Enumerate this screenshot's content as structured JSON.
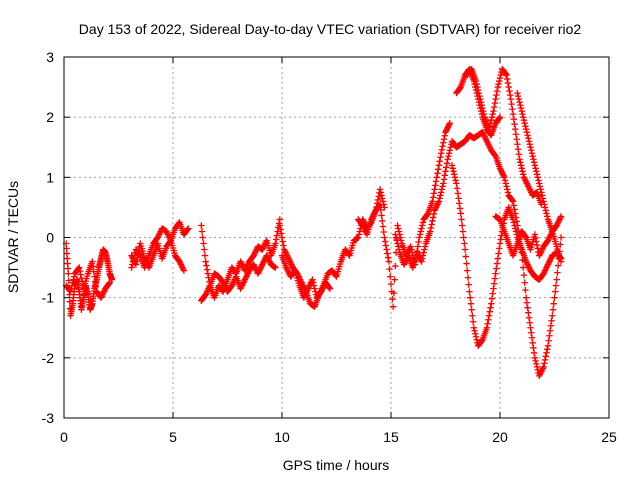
{
  "chart_data": {
    "type": "scatter",
    "title": "Day 153 of 2022, Sidereal Day-to-day VTEC variation (SDTVAR) for receiver rio2",
    "xlabel": "GPS time / hours",
    "ylabel": "SDTVAR / TECUs",
    "xlim": [
      0,
      25
    ],
    "ylim": [
      -3,
      3
    ],
    "xticks": [
      "0",
      "5",
      "10",
      "15",
      "20",
      "25"
    ],
    "xtick_values": [
      0,
      5,
      10,
      15,
      20,
      25
    ],
    "yticks": [
      "3",
      "2",
      "1",
      "0",
      "-1",
      "-2",
      "-3"
    ],
    "ytick_values": [
      3,
      2,
      1,
      0,
      -1,
      -2,
      -3
    ],
    "grid": true,
    "marker": "+",
    "color": "#ff0000",
    "series": [
      {
        "name": "SDTVAR",
        "segments": [
          {
            "x": [
              0.1,
              0.2,
              0.3,
              0.4,
              0.5,
              0.6,
              0.7,
              0.8,
              0.9,
              1.0,
              1.1,
              1.2,
              1.3,
              1.4,
              1.5,
              1.6,
              1.7,
              1.8,
              1.9,
              2.0,
              2.1,
              2.2
            ],
            "y": [
              -0.1,
              -0.6,
              -1.3,
              -1.1,
              -0.8,
              -0.7,
              -0.9,
              -1.2,
              -1.0,
              -0.8,
              -0.95,
              -1.2,
              -1.1,
              -0.85,
              -0.7,
              -0.5,
              -0.35,
              -0.2,
              -0.25,
              -0.4,
              -0.6,
              -0.7
            ]
          },
          {
            "x": [
              0.1,
              0.3,
              0.5,
              0.7,
              0.9,
              1.1,
              1.3,
              1.5,
              1.7,
              1.9,
              2.1
            ],
            "y": [
              -0.8,
              -0.9,
              -0.6,
              -0.5,
              -0.85,
              -0.6,
              -0.4,
              -0.9,
              -1.0,
              -0.85,
              -0.75
            ]
          },
          {
            "x": [
              3.1,
              3.3,
              3.5,
              3.7,
              3.9,
              4.1,
              4.3,
              4.5,
              4.7,
              4.9,
              5.1,
              5.3,
              5.5,
              5.7
            ],
            "y": [
              -0.5,
              -0.2,
              -0.3,
              -0.5,
              -0.3,
              -0.1,
              0.0,
              0.15,
              0.1,
              -0.05,
              0.15,
              0.25,
              0.05,
              0.15
            ]
          },
          {
            "x": [
              3.1,
              3.3,
              3.5,
              3.7,
              3.9,
              4.1,
              4.3,
              4.5,
              4.7,
              4.9,
              5.1,
              5.3,
              5.5
            ],
            "y": [
              -0.3,
              -0.45,
              -0.1,
              -0.35,
              -0.5,
              -0.3,
              -0.1,
              -0.35,
              -0.15,
              -0.05,
              -0.3,
              -0.4,
              -0.55
            ]
          },
          {
            "x": [
              6.3,
              6.5,
              6.7,
              6.9,
              7.1,
              7.3,
              7.5,
              7.7,
              7.9,
              8.1,
              8.3,
              8.5,
              8.7,
              8.9,
              9.1,
              9.3,
              9.5,
              9.7,
              9.9
            ],
            "y": [
              0.2,
              -0.4,
              -0.8,
              -1.0,
              -0.8,
              -0.9,
              -0.7,
              -0.5,
              -0.6,
              -0.4,
              -0.55,
              -0.4,
              -0.3,
              -0.15,
              -0.2,
              -0.05,
              -0.3,
              -0.1,
              0.3
            ]
          },
          {
            "x": [
              6.3,
              6.5,
              6.7,
              6.9,
              7.1,
              7.3,
              7.5,
              7.7,
              7.9,
              8.1,
              8.3,
              8.5,
              8.7,
              8.9,
              9.1,
              9.3,
              9.5,
              9.7
            ],
            "y": [
              -1.05,
              -0.95,
              -0.8,
              -0.6,
              -0.65,
              -0.75,
              -0.9,
              -0.8,
              -0.65,
              -0.85,
              -0.7,
              -0.55,
              -0.45,
              -0.6,
              -0.45,
              -0.3,
              -0.45,
              -0.5
            ]
          },
          {
            "x": [
              9.9,
              10.1,
              10.3,
              10.5,
              10.7,
              10.9,
              11.1,
              11.3,
              11.5,
              11.7,
              11.9,
              12.1,
              12.3,
              12.5,
              12.7,
              12.9,
              13.1,
              13.3,
              13.5,
              13.7,
              13.9,
              14.1,
              14.3,
              14.5,
              14.7
            ],
            "y": [
              0.2,
              -0.2,
              -0.35,
              -0.5,
              -0.6,
              -0.75,
              -0.9,
              -1.1,
              -1.15,
              -0.95,
              -0.8,
              -0.6,
              -0.55,
              -0.65,
              -0.4,
              -0.2,
              -0.3,
              -0.05,
              0.0,
              0.3,
              0.15,
              0.25,
              0.45,
              0.8,
              0.5
            ]
          },
          {
            "x": [
              10.0,
              10.2,
              10.4,
              10.6,
              10.8,
              11.0,
              11.2,
              11.4,
              11.6,
              11.8,
              12.0,
              12.2
            ],
            "y": [
              -0.3,
              -0.5,
              -0.65,
              -0.55,
              -0.8,
              -1.0,
              -0.85,
              -0.7,
              -1.0,
              -0.9,
              -0.75,
              -0.85
            ]
          },
          {
            "x": [
              13.5,
              13.7,
              13.9,
              14.1,
              14.3,
              14.5,
              14.7,
              14.9,
              15.1,
              15.3,
              15.5,
              15.7,
              15.9,
              16.1,
              16.3,
              16.5,
              16.7,
              16.9,
              17.1,
              17.3,
              17.5,
              17.7
            ],
            "y": [
              0.3,
              0.2,
              0.05,
              0.3,
              0.45,
              0.55,
              0.0,
              -0.4,
              -1.15,
              0.2,
              -0.1,
              -0.3,
              -0.15,
              -0.45,
              0.0,
              0.3,
              0.4,
              0.6,
              1.0,
              1.4,
              1.75,
              1.9
            ]
          },
          {
            "x": [
              15.2,
              15.4,
              15.6,
              15.8,
              16.0,
              16.2,
              16.4,
              16.6,
              16.8,
              17.0,
              17.2,
              17.4,
              17.6,
              17.8,
              18.0,
              18.2,
              18.4,
              18.6
            ],
            "y": [
              0.05,
              -0.25,
              -0.45,
              -0.3,
              -0.5,
              -0.25,
              -0.4,
              -0.1,
              0.1,
              0.45,
              0.6,
              0.9,
              1.3,
              1.6,
              1.5,
              1.55,
              1.6,
              1.7
            ]
          },
          {
            "x": [
              17.8,
              18.0,
              18.2,
              18.4,
              18.6,
              18.8,
              19.0,
              19.2,
              19.4,
              19.6,
              19.8,
              20.0,
              20.2,
              20.4,
              20.6,
              20.8,
              21.0,
              21.2,
              21.4,
              21.6,
              21.8,
              22.0,
              22.2,
              22.4,
              22.6,
              22.8
            ],
            "y": [
              1.2,
              0.9,
              0.4,
              -0.2,
              -0.9,
              -1.5,
              -1.8,
              -1.7,
              -1.5,
              -1.1,
              -0.6,
              -0.1,
              0.3,
              0.5,
              0.3,
              0.0,
              -0.2,
              -0.4,
              -0.55,
              -0.65,
              -0.7,
              -0.6,
              -0.45,
              -0.3,
              -0.25,
              -0.35
            ]
          },
          {
            "x": [
              19.8,
              20.0,
              20.2,
              20.4,
              20.6,
              20.8,
              21.0,
              21.2,
              21.4,
              21.6,
              21.8,
              22.0,
              22.2,
              22.4,
              22.6,
              22.8
            ],
            "y": [
              0.35,
              0.3,
              0.1,
              -0.1,
              -0.3,
              -0.1,
              0.1,
              0.0,
              -0.2,
              0.05,
              -0.3,
              -0.15,
              -0.05,
              0.1,
              0.2,
              0.35
            ]
          },
          {
            "x": [
              18.5,
              18.7,
              18.9,
              19.1,
              19.3,
              19.5,
              19.7,
              19.9,
              20.1,
              20.3,
              20.5,
              20.7,
              20.9,
              21.1,
              21.3,
              21.5,
              21.7,
              21.9
            ],
            "y": [
              2.7,
              2.8,
              2.6,
              2.3,
              2.0,
              1.8,
              2.1,
              2.5,
              2.8,
              2.7,
              2.3,
              1.8,
              1.3,
              1.0,
              0.85,
              0.7,
              0.75,
              0.55
            ]
          },
          {
            "x": [
              18.0,
              18.2,
              18.4,
              18.6,
              18.8,
              19.0,
              19.2,
              19.4,
              19.6,
              19.8,
              20.0
            ],
            "y": [
              2.4,
              2.5,
              2.7,
              2.8,
              2.6,
              2.3,
              2.0,
              1.8,
              1.7,
              1.9,
              2.0
            ]
          },
          {
            "x": [
              18.6,
              18.8,
              19.0,
              19.2,
              19.4,
              19.6,
              19.8,
              20.0,
              20.2,
              20.4,
              20.6,
              20.8,
              21.0,
              21.2,
              21.4,
              21.6,
              21.8,
              22.0,
              22.2,
              22.4,
              22.6,
              22.8
            ],
            "y": [
              1.7,
              1.65,
              1.7,
              1.75,
              1.6,
              1.45,
              1.35,
              1.15,
              1.0,
              0.7,
              0.6,
              0.2,
              -0.25,
              -1.0,
              -1.5,
              -2.0,
              -2.3,
              -2.15,
              -1.8,
              -1.3,
              -0.7,
              0.0
            ]
          },
          {
            "x": [
              20.8,
              21.0,
              21.2,
              21.4,
              21.6,
              21.8,
              22.0,
              22.2,
              22.4,
              22.6,
              22.8
            ],
            "y": [
              2.4,
              2.1,
              1.8,
              1.5,
              1.2,
              0.9,
              0.6,
              0.3,
              0.1,
              -0.15,
              -0.4
            ]
          }
        ]
      }
    ]
  }
}
